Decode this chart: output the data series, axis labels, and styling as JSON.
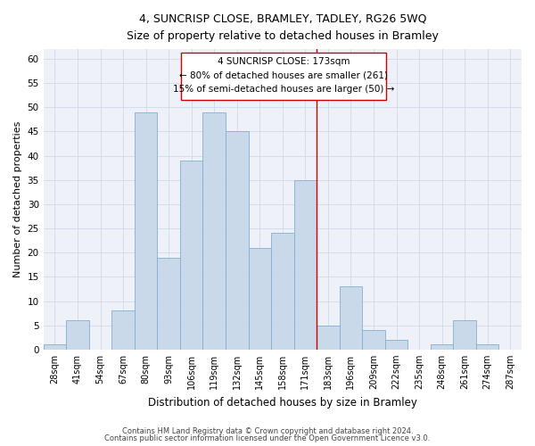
{
  "title": "4, SUNCRISP CLOSE, BRAMLEY, TADLEY, RG26 5WQ",
  "subtitle": "Size of property relative to detached houses in Bramley",
  "xlabel": "Distribution of detached houses by size in Bramley",
  "ylabel": "Number of detached properties",
  "categories": [
    "28sqm",
    "41sqm",
    "54sqm",
    "67sqm",
    "80sqm",
    "93sqm",
    "106sqm",
    "119sqm",
    "132sqm",
    "145sqm",
    "158sqm",
    "171sqm",
    "183sqm",
    "196sqm",
    "209sqm",
    "222sqm",
    "235sqm",
    "248sqm",
    "261sqm",
    "274sqm",
    "287sqm"
  ],
  "values": [
    1,
    6,
    0,
    8,
    49,
    19,
    39,
    49,
    45,
    21,
    24,
    35,
    5,
    13,
    4,
    2,
    0,
    1,
    6,
    1,
    0
  ],
  "bar_color": "#c9d9ea",
  "bar_edge_color": "#7fafd4",
  "property_label": "4 SUNCRISP CLOSE: 173sqm",
  "annotation_line1": "← 80% of detached houses are smaller (261)",
  "annotation_line2": "15% of semi-detached houses are larger (50) →",
  "vline_color": "#cc0000",
  "annotation_box_color": "#cc0000",
  "grid_color": "#d0daea",
  "background_color": "#eef2f8",
  "footer_line1": "Contains HM Land Registry data © Crown copyright and database right 2024.",
  "footer_line2": "Contains public sector information licensed under the Open Government Licence v3.0.",
  "ylim": [
    0,
    62
  ],
  "yticks": [
    0,
    5,
    10,
    15,
    20,
    25,
    30,
    35,
    40,
    45,
    50,
    55,
    60
  ]
}
